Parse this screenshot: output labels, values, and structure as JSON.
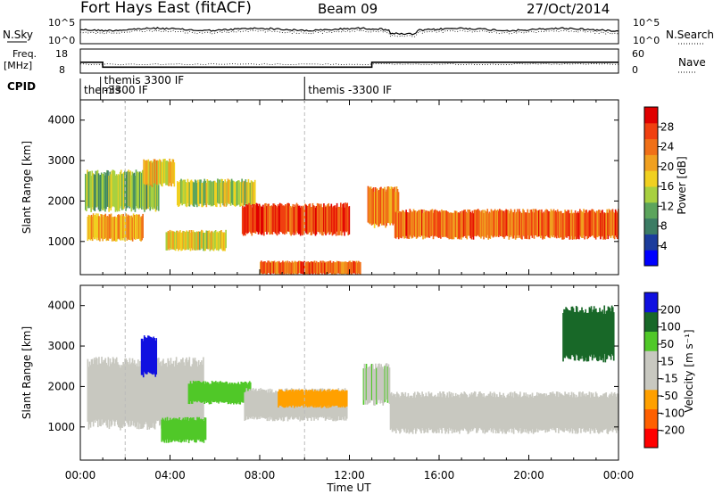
{
  "header": {
    "station": "Fort Hays East (fitACF)",
    "beam": "Beam 09",
    "date": "27/Oct/2014"
  },
  "panels": {
    "sky_label": "N.Sky",
    "search_label": "N.Search",
    "freq_label_line1": "Freq.",
    "freq_label_line2": "[MHz]",
    "nave_label": "Nave",
    "cpid_label": "CPID",
    "sky_left_ticks": [
      "10^5",
      "10^0"
    ],
    "sky_right_ticks": [
      "10^5",
      "10^0"
    ],
    "freq_ticks": [
      "18",
      "8"
    ],
    "nave_ticks": [
      "60",
      "0"
    ],
    "cpid_segments": [
      {
        "start": 0,
        "end": 0.9,
        "label": "themis",
        "label2": ""
      },
      {
        "start": 0.9,
        "end": 10.0,
        "label": "themis 3300 IF",
        "label2": "-3300 IF"
      },
      {
        "start": 10.0,
        "end": 24,
        "label": "themis -3300 IF",
        "label2": ""
      }
    ],
    "freq_steps": [
      {
        "start": 0,
        "end": 1.0,
        "value": 12.5
      },
      {
        "start": 1.0,
        "end": 13.0,
        "value": 10.5
      },
      {
        "start": 13.0,
        "end": 24,
        "value": 12.5
      }
    ]
  },
  "power_colorbar": {
    "label": "Power [dB]",
    "ticks": [
      "28",
      "24",
      "20",
      "16",
      "12",
      "8",
      "4"
    ]
  },
  "velocity_colorbar": {
    "label": "Velocity [m s⁻¹]",
    "ticks": [
      "200",
      "100",
      "50",
      "15",
      "-15",
      "-50",
      "-100",
      "-200"
    ]
  },
  "colors": {
    "power": [
      "#0000ff",
      "#1c3c9c",
      "#3c7c64",
      "#5ca45c",
      "#a8d040",
      "#f0d020",
      "#f0a020",
      "#f07018",
      "#f04010",
      "#e00000"
    ],
    "velocity": [
      "#ff0000",
      "#ff6000",
      "#ffa000",
      "#c8c8c0",
      "#c8c8c0",
      "#50c828",
      "#186828",
      "#1010e0"
    ]
  },
  "chart_data": [
    {
      "type": "heatmap",
      "name": "power",
      "ylabel": "Slant Range [km]",
      "xlabel": "Time UT",
      "xlim": [
        0,
        24
      ],
      "ylim": [
        180,
        4500
      ],
      "yticks": [
        1000,
        2000,
        3000,
        4000
      ],
      "xticks": [
        "00:00",
        "04:00",
        "08:00",
        "12:00",
        "16:00",
        "20:00",
        "00:00"
      ],
      "echo_bands": [
        {
          "t0": 0.3,
          "t1": 2.8,
          "r0": 1050,
          "r1": 1650,
          "power": 20
        },
        {
          "t0": 0.2,
          "t1": 3.5,
          "r0": 1800,
          "r1": 2700,
          "power": 12
        },
        {
          "t0": 2.8,
          "t1": 4.2,
          "r0": 2400,
          "r1": 3000,
          "power": 18
        },
        {
          "t0": 3.8,
          "t1": 6.5,
          "r0": 800,
          "r1": 1250,
          "power": 16
        },
        {
          "t0": 4.3,
          "t1": 7.8,
          "r0": 1900,
          "r1": 2500,
          "power": 14
        },
        {
          "t0": 7.2,
          "t1": 12.0,
          "r0": 1200,
          "r1": 1900,
          "power": 26
        },
        {
          "t0": 8.0,
          "t1": 12.5,
          "r0": 200,
          "r1": 500,
          "power": 24
        },
        {
          "t0": 12.8,
          "t1": 14.2,
          "r0": 1400,
          "r1": 2300,
          "power": 22
        },
        {
          "t0": 14.0,
          "t1": 24.0,
          "r0": 1100,
          "r1": 1750,
          "power": 24
        }
      ]
    },
    {
      "type": "heatmap",
      "name": "velocity",
      "ylabel": "Slant Range [km]",
      "xlabel": "Time UT",
      "xlim": [
        0,
        24
      ],
      "ylim": [
        180,
        4500
      ],
      "yticks": [
        1000,
        2000,
        3000,
        4000
      ],
      "xticks": [
        "00:00",
        "04:00",
        "08:00",
        "12:00",
        "16:00",
        "20:00",
        "00:00"
      ],
      "echo_bands": [
        {
          "t0": 0.3,
          "t1": 5.5,
          "r0": 1050,
          "r1": 2600,
          "velocity": -5
        },
        {
          "t0": 2.7,
          "t1": 3.4,
          "r0": 2300,
          "r1": 3200,
          "velocity": 220
        },
        {
          "t0": 3.6,
          "t1": 5.6,
          "r0": 650,
          "r1": 1200,
          "velocity": 70
        },
        {
          "t0": 4.8,
          "t1": 7.6,
          "r0": 1600,
          "r1": 2100,
          "velocity": 70
        },
        {
          "t0": 7.3,
          "t1": 11.9,
          "r0": 1200,
          "r1": 1900,
          "velocity": 35
        },
        {
          "t0": 8.8,
          "t1": 11.9,
          "r0": 1500,
          "r1": 1900,
          "velocity": -40
        },
        {
          "t0": 12.6,
          "t1": 13.8,
          "r0": 1600,
          "r1": 2500,
          "velocity": 45
        },
        {
          "t0": 13.8,
          "t1": 24.0,
          "r0": 900,
          "r1": 1800,
          "velocity": -5
        },
        {
          "t0": 21.5,
          "t1": 23.8,
          "r0": 2700,
          "r1": 3900,
          "velocity": 180
        }
      ]
    }
  ]
}
